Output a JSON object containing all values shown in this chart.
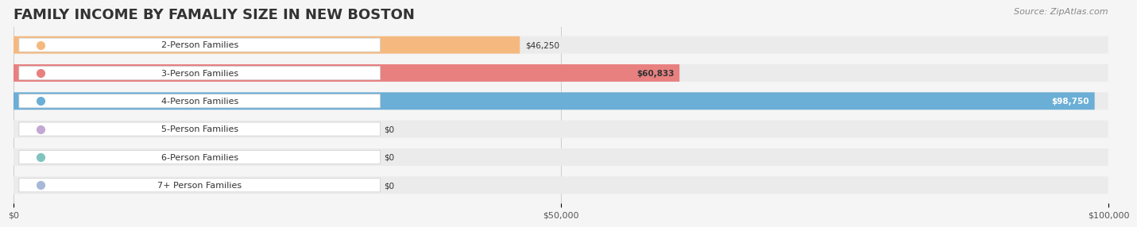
{
  "title": "FAMILY INCOME BY FAMALIY SIZE IN NEW BOSTON",
  "source": "Source: ZipAtlas.com",
  "categories": [
    "2-Person Families",
    "3-Person Families",
    "4-Person Families",
    "5-Person Families",
    "6-Person Families",
    "7+ Person Families"
  ],
  "values": [
    46250,
    60833,
    98750,
    0,
    0,
    0
  ],
  "bar_colors": [
    "#F5B97F",
    "#E88080",
    "#6BAED6",
    "#C4A8D4",
    "#7FC4BE",
    "#A8B8D8"
  ],
  "label_colors": [
    "#333333",
    "#333333",
    "#ffffff",
    "#333333",
    "#333333",
    "#333333"
  ],
  "dot_colors": [
    "#F5B97F",
    "#E88080",
    "#6BAED6",
    "#C4A8D4",
    "#7FC4BE",
    "#A8B8D8"
  ],
  "xlim": [
    0,
    100000
  ],
  "xticks": [
    0,
    50000,
    100000
  ],
  "xtick_labels": [
    "$0",
    "$50,000",
    "$100,000"
  ],
  "background_color": "#f5f5f5",
  "bar_bg_color": "#ebebeb",
  "title_fontsize": 13,
  "source_fontsize": 8,
  "label_fontsize": 8,
  "value_fontsize": 7.5,
  "tick_fontsize": 8
}
